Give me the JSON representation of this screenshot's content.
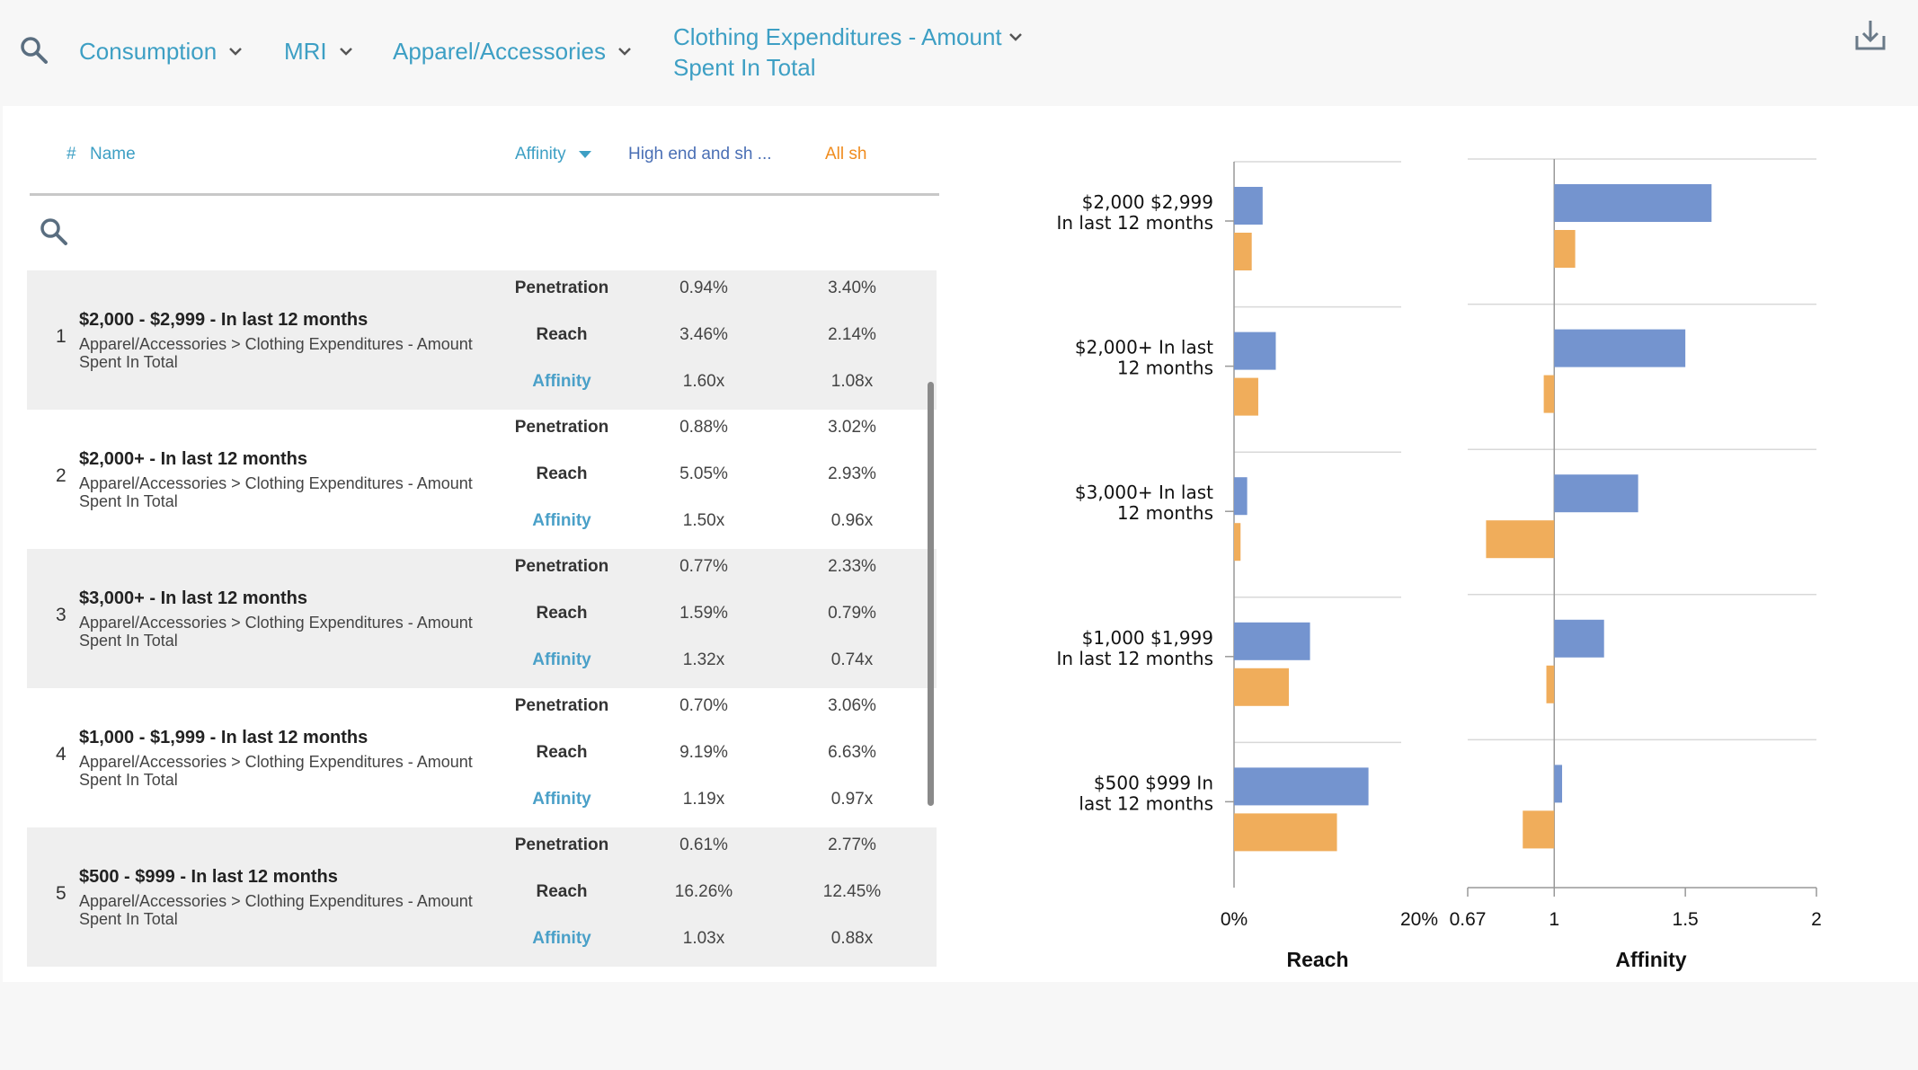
{
  "toolbar": {
    "breadcrumbs": [
      {
        "label": "Consumption"
      },
      {
        "label": "MRI"
      },
      {
        "label": "Apparel/Accessories"
      },
      {
        "label": "Clothing Expenditures - Amount Spent In Total"
      }
    ],
    "search_icon": "search-icon",
    "download_icon": "download-icon"
  },
  "table": {
    "headers": {
      "hash": "#",
      "name": "Name",
      "affinity": "Affinity",
      "col1": "High end and sh  ...",
      "col2": "All sh"
    },
    "metric_labels": [
      "Penetration",
      "Reach",
      "Affinity"
    ],
    "rows": [
      {
        "num": "1",
        "title": "$2,000 - $2,999 - In last 12 months",
        "path": "Apparel/Accessories > Clothing Expenditures - Amount Spent In Total",
        "col1": [
          "0.94%",
          "3.46%",
          "1.60x"
        ],
        "col2": [
          "3.40%",
          "2.14%",
          "1.08x"
        ]
      },
      {
        "num": "2",
        "title": "$2,000+ - In last 12 months",
        "path": "Apparel/Accessories > Clothing Expenditures - Amount Spent In Total",
        "col1": [
          "0.88%",
          "5.05%",
          "1.50x"
        ],
        "col2": [
          "3.02%",
          "2.93%",
          "0.96x"
        ]
      },
      {
        "num": "3",
        "title": "$3,000+ - In last 12 months",
        "path": "Apparel/Accessories > Clothing Expenditures - Amount Spent In Total",
        "col1": [
          "0.77%",
          "1.59%",
          "1.32x"
        ],
        "col2": [
          "2.33%",
          "0.79%",
          "0.74x"
        ]
      },
      {
        "num": "4",
        "title": "$1,000 - $1,999 - In last 12 months",
        "path": "Apparel/Accessories > Clothing Expenditures - Amount Spent In Total",
        "col1": [
          "0.70%",
          "9.19%",
          "1.19x"
        ],
        "col2": [
          "3.06%",
          "6.63%",
          "0.97x"
        ]
      },
      {
        "num": "5",
        "title": "$500 - $999 - In last 12 months",
        "path": "Apparel/Accessories > Clothing Expenditures - Amount Spent In Total",
        "col1": [
          "0.61%",
          "16.26%",
          "1.03x"
        ],
        "col2": [
          "2.77%",
          "12.45%",
          "0.88x"
        ]
      }
    ]
  },
  "colors": {
    "accent": "#3d9fc4",
    "series_blue": "#7494cf",
    "series_orange": "#f0ad5b"
  },
  "chart_data": [
    {
      "type": "bar",
      "orientation": "horizontal",
      "xlabel": "Reach",
      "ticks": [
        "0%",
        "20%"
      ],
      "xlim": [
        0,
        20
      ],
      "categories": [
        [
          "$2,000 $2,999",
          "In last 12 months"
        ],
        [
          "$2,000+ In last",
          "12 months"
        ],
        [
          "$3,000+ In last",
          "12 months"
        ],
        [
          "$1,000 $1,999",
          "In last 12 months"
        ],
        [
          "$500 $999 In",
          "last 12 months"
        ]
      ],
      "series": [
        {
          "values": [
            3.46,
            5.05,
            1.59,
            9.19,
            16.26
          ]
        },
        {
          "values": [
            2.14,
            2.93,
            0.79,
            6.63,
            12.45
          ]
        }
      ]
    },
    {
      "type": "bar",
      "orientation": "horizontal",
      "xlabel": "Affinity",
      "ticks": [
        "0.67",
        "1",
        "1.5",
        "2"
      ],
      "xlim": [
        0.67,
        2
      ],
      "baseline": 1,
      "series": [
        {
          "values": [
            1.6,
            1.5,
            1.32,
            1.19,
            1.03
          ]
        },
        {
          "values": [
            1.08,
            0.96,
            0.74,
            0.97,
            0.88
          ]
        }
      ]
    }
  ]
}
